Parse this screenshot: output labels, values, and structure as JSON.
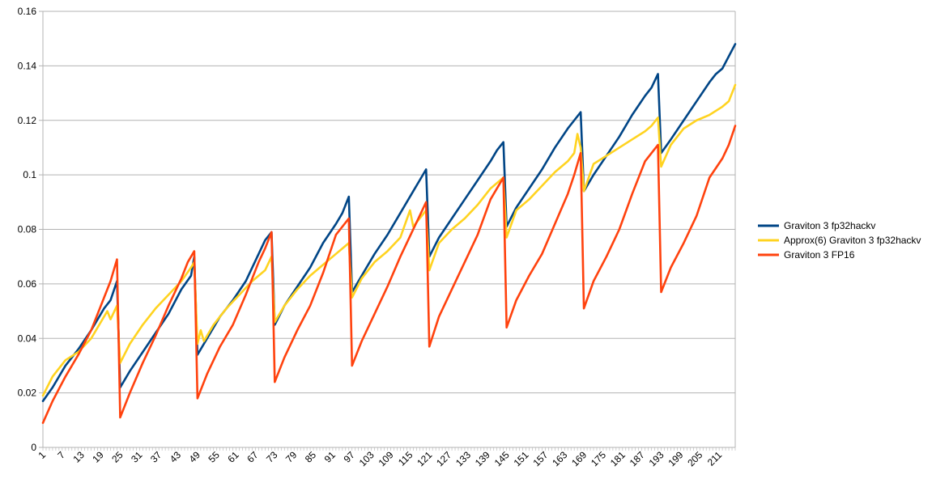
{
  "chart_data": {
    "type": "line",
    "title": "",
    "xlabel": "",
    "ylabel": "",
    "ylim": [
      0,
      0.16
    ],
    "xlim": [
      1,
      216
    ],
    "grid": "horizontal",
    "legend_position": "right",
    "y_ticks": [
      "0",
      "0.02",
      "0.04",
      "0.06",
      "0.08",
      "0.1",
      "0.12",
      "0.14",
      "0.16"
    ],
    "x_ticks": [
      "1",
      "7",
      "13",
      "19",
      "25",
      "31",
      "37",
      "43",
      "49",
      "55",
      "61",
      "67",
      "73",
      "79",
      "85",
      "91",
      "97",
      "103",
      "109",
      "115",
      "121",
      "127",
      "133",
      "139",
      "145",
      "151",
      "157",
      "163",
      "169",
      "175",
      "181",
      "187",
      "193",
      "199",
      "205",
      "211"
    ],
    "series": [
      {
        "name": "Graviton 3 fp32hackv",
        "color": "#004586",
        "points": [
          [
            1,
            0.017
          ],
          [
            4,
            0.022
          ],
          [
            8,
            0.03
          ],
          [
            12,
            0.036
          ],
          [
            16,
            0.043
          ],
          [
            20,
            0.051
          ],
          [
            22,
            0.054
          ],
          [
            24,
            0.061
          ],
          [
            25,
            0.022
          ],
          [
            28,
            0.028
          ],
          [
            32,
            0.035
          ],
          [
            36,
            0.042
          ],
          [
            40,
            0.049
          ],
          [
            44,
            0.058
          ],
          [
            47,
            0.063
          ],
          [
            48,
            0.07
          ],
          [
            49,
            0.034
          ],
          [
            52,
            0.04
          ],
          [
            56,
            0.048
          ],
          [
            60,
            0.054
          ],
          [
            64,
            0.061
          ],
          [
            68,
            0.071
          ],
          [
            70,
            0.076
          ],
          [
            72,
            0.079
          ],
          [
            73,
            0.045
          ],
          [
            76,
            0.052
          ],
          [
            80,
            0.059
          ],
          [
            84,
            0.066
          ],
          [
            88,
            0.075
          ],
          [
            92,
            0.082
          ],
          [
            94,
            0.086
          ],
          [
            96,
            0.092
          ],
          [
            97,
            0.057
          ],
          [
            100,
            0.063
          ],
          [
            104,
            0.071
          ],
          [
            108,
            0.078
          ],
          [
            112,
            0.086
          ],
          [
            116,
            0.094
          ],
          [
            118,
            0.098
          ],
          [
            120,
            0.102
          ],
          [
            121,
            0.07
          ],
          [
            124,
            0.077
          ],
          [
            128,
            0.084
          ],
          [
            132,
            0.091
          ],
          [
            136,
            0.098
          ],
          [
            140,
            0.105
          ],
          [
            142,
            0.109
          ],
          [
            144,
            0.112
          ],
          [
            145,
            0.081
          ],
          [
            148,
            0.088
          ],
          [
            152,
            0.095
          ],
          [
            156,
            0.102
          ],
          [
            160,
            0.11
          ],
          [
            164,
            0.117
          ],
          [
            166,
            0.12
          ],
          [
            168,
            0.123
          ],
          [
            169,
            0.094
          ],
          [
            172,
            0.1
          ],
          [
            176,
            0.107
          ],
          [
            180,
            0.114
          ],
          [
            184,
            0.122
          ],
          [
            188,
            0.129
          ],
          [
            190,
            0.132
          ],
          [
            192,
            0.137
          ],
          [
            193,
            0.108
          ],
          [
            196,
            0.113
          ],
          [
            200,
            0.12
          ],
          [
            204,
            0.127
          ],
          [
            208,
            0.134
          ],
          [
            210,
            0.137
          ],
          [
            212,
            0.139
          ],
          [
            216,
            0.148
          ]
        ]
      },
      {
        "name": "Approx(6) Graviton 3 fp32hackv",
        "color": "#ffd320",
        "points": [
          [
            1,
            0.019
          ],
          [
            4,
            0.026
          ],
          [
            8,
            0.032
          ],
          [
            12,
            0.035
          ],
          [
            16,
            0.04
          ],
          [
            20,
            0.048
          ],
          [
            21,
            0.05
          ],
          [
            22,
            0.047
          ],
          [
            24,
            0.052
          ],
          [
            25,
            0.031
          ],
          [
            28,
            0.038
          ],
          [
            32,
            0.045
          ],
          [
            36,
            0.051
          ],
          [
            40,
            0.056
          ],
          [
            44,
            0.061
          ],
          [
            47,
            0.066
          ],
          [
            48,
            0.068
          ],
          [
            49,
            0.038
          ],
          [
            50,
            0.043
          ],
          [
            51,
            0.039
          ],
          [
            54,
            0.045
          ],
          [
            58,
            0.051
          ],
          [
            62,
            0.056
          ],
          [
            66,
            0.061
          ],
          [
            70,
            0.065
          ],
          [
            72,
            0.07
          ],
          [
            73,
            0.046
          ],
          [
            76,
            0.052
          ],
          [
            80,
            0.058
          ],
          [
            84,
            0.063
          ],
          [
            88,
            0.067
          ],
          [
            92,
            0.071
          ],
          [
            94,
            0.073
          ],
          [
            96,
            0.075
          ],
          [
            97,
            0.055
          ],
          [
            100,
            0.062
          ],
          [
            104,
            0.068
          ],
          [
            108,
            0.072
          ],
          [
            112,
            0.077
          ],
          [
            115,
            0.087
          ],
          [
            116,
            0.081
          ],
          [
            120,
            0.087
          ],
          [
            121,
            0.065
          ],
          [
            124,
            0.075
          ],
          [
            128,
            0.08
          ],
          [
            132,
            0.084
          ],
          [
            136,
            0.089
          ],
          [
            140,
            0.095
          ],
          [
            142,
            0.097
          ],
          [
            144,
            0.099
          ],
          [
            145,
            0.077
          ],
          [
            148,
            0.087
          ],
          [
            152,
            0.091
          ],
          [
            156,
            0.096
          ],
          [
            160,
            0.101
          ],
          [
            164,
            0.105
          ],
          [
            166,
            0.108
          ],
          [
            167,
            0.115
          ],
          [
            168,
            0.11
          ],
          [
            169,
            0.094
          ],
          [
            172,
            0.104
          ],
          [
            176,
            0.107
          ],
          [
            180,
            0.11
          ],
          [
            184,
            0.113
          ],
          [
            188,
            0.116
          ],
          [
            190,
            0.118
          ],
          [
            192,
            0.121
          ],
          [
            193,
            0.103
          ],
          [
            196,
            0.111
          ],
          [
            200,
            0.117
          ],
          [
            204,
            0.12
          ],
          [
            208,
            0.122
          ],
          [
            212,
            0.125
          ],
          [
            214,
            0.127
          ],
          [
            216,
            0.133
          ]
        ]
      },
      {
        "name": "Graviton 3 FP16",
        "color": "#ff420e",
        "points": [
          [
            1,
            0.009
          ],
          [
            4,
            0.017
          ],
          [
            8,
            0.026
          ],
          [
            12,
            0.034
          ],
          [
            16,
            0.043
          ],
          [
            20,
            0.055
          ],
          [
            22,
            0.061
          ],
          [
            24,
            0.069
          ],
          [
            25,
            0.011
          ],
          [
            28,
            0.02
          ],
          [
            32,
            0.031
          ],
          [
            36,
            0.041
          ],
          [
            40,
            0.052
          ],
          [
            44,
            0.062
          ],
          [
            46,
            0.068
          ],
          [
            48,
            0.072
          ],
          [
            49,
            0.018
          ],
          [
            52,
            0.027
          ],
          [
            56,
            0.037
          ],
          [
            60,
            0.045
          ],
          [
            64,
            0.056
          ],
          [
            68,
            0.068
          ],
          [
            70,
            0.073
          ],
          [
            72,
            0.079
          ],
          [
            73,
            0.024
          ],
          [
            76,
            0.033
          ],
          [
            80,
            0.043
          ],
          [
            84,
            0.052
          ],
          [
            88,
            0.064
          ],
          [
            92,
            0.078
          ],
          [
            94,
            0.081
          ],
          [
            96,
            0.084
          ],
          [
            97,
            0.03
          ],
          [
            100,
            0.039
          ],
          [
            104,
            0.049
          ],
          [
            108,
            0.059
          ],
          [
            112,
            0.07
          ],
          [
            116,
            0.08
          ],
          [
            118,
            0.085
          ],
          [
            120,
            0.09
          ],
          [
            121,
            0.037
          ],
          [
            124,
            0.048
          ],
          [
            128,
            0.058
          ],
          [
            132,
            0.068
          ],
          [
            136,
            0.078
          ],
          [
            140,
            0.091
          ],
          [
            142,
            0.095
          ],
          [
            144,
            0.099
          ],
          [
            145,
            0.044
          ],
          [
            148,
            0.054
          ],
          [
            152,
            0.063
          ],
          [
            156,
            0.071
          ],
          [
            160,
            0.082
          ],
          [
            164,
            0.093
          ],
          [
            166,
            0.1
          ],
          [
            168,
            0.108
          ],
          [
            169,
            0.051
          ],
          [
            172,
            0.061
          ],
          [
            176,
            0.07
          ],
          [
            180,
            0.08
          ],
          [
            184,
            0.093
          ],
          [
            188,
            0.105
          ],
          [
            190,
            0.108
          ],
          [
            192,
            0.111
          ],
          [
            193,
            0.057
          ],
          [
            196,
            0.066
          ],
          [
            200,
            0.075
          ],
          [
            204,
            0.085
          ],
          [
            208,
            0.099
          ],
          [
            212,
            0.106
          ],
          [
            214,
            0.111
          ],
          [
            216,
            0.118
          ]
        ]
      }
    ]
  }
}
